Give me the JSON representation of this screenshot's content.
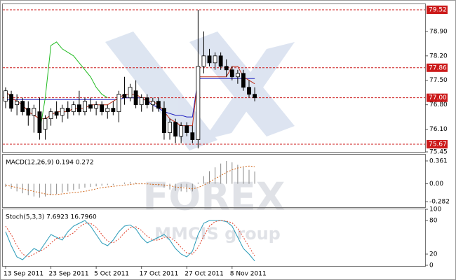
{
  "watermark": {
    "brand": "FOREX",
    "sub": "MMCIS group"
  },
  "chart_data": [
    {
      "type": "candlestick",
      "categories": [
        "13 Sep 2011",
        null,
        null,
        null,
        null,
        null,
        null,
        null,
        "23 Sep 2011",
        null,
        null,
        null,
        null,
        null,
        null,
        null,
        "5 Oct 2011",
        null,
        null,
        null,
        null,
        null,
        null,
        null,
        "17 Oct 2011",
        null,
        null,
        null,
        null,
        null,
        null,
        null,
        "27 Oct 2011",
        null,
        null,
        null,
        null,
        null,
        null,
        null,
        "8 Nov 2011",
        null,
        null,
        null,
        null
      ],
      "open": [
        76.9,
        77.1,
        76.8,
        76.9,
        76.7,
        76.5,
        76.6,
        76.1,
        76.4,
        76.6,
        76.5,
        76.7,
        76.6,
        76.8,
        76.6,
        76.8,
        76.7,
        76.8,
        76.6,
        76.7,
        76.6,
        77.1,
        77.0,
        77.2,
        76.8,
        77.0,
        76.8,
        76.9,
        76.7,
        76.0,
        76.3,
        75.9,
        76.2,
        76.0,
        75.8,
        77.9,
        78.2,
        78.0,
        78.2,
        77.9,
        77.8,
        77.6,
        77.7,
        77.3,
        77.1
      ],
      "high": [
        77.3,
        77.2,
        77.1,
        77.0,
        76.9,
        76.8,
        77.0,
        76.5,
        76.7,
        76.9,
        76.8,
        76.9,
        76.9,
        77.2,
        77.0,
        77.0,
        76.9,
        76.9,
        76.8,
        76.9,
        77.2,
        77.6,
        77.4,
        77.5,
        77.1,
        77.1,
        77.0,
        77.0,
        76.9,
        76.4,
        76.4,
        76.3,
        76.3,
        76.2,
        79.52,
        78.9,
        78.4,
        78.3,
        78.3,
        78.1,
        77.9,
        77.8,
        77.8,
        77.5,
        77.3
      ],
      "low": [
        76.7,
        76.6,
        76.5,
        76.5,
        76.2,
        76.0,
        75.8,
        75.8,
        76.2,
        76.4,
        76.3,
        76.4,
        76.5,
        76.5,
        76.5,
        76.6,
        76.5,
        76.5,
        76.4,
        76.5,
        76.3,
        76.8,
        76.9,
        76.7,
        76.6,
        76.7,
        76.6,
        76.6,
        75.8,
        75.8,
        75.7,
        75.7,
        75.9,
        75.7,
        75.55,
        77.7,
        77.9,
        77.8,
        77.8,
        77.6,
        77.5,
        77.4,
        77.2,
        77.0,
        76.9
      ],
      "close": [
        77.2,
        76.7,
        76.9,
        76.6,
        76.5,
        76.7,
        76.0,
        76.4,
        76.6,
        76.5,
        76.7,
        76.6,
        76.8,
        76.6,
        76.9,
        76.7,
        76.8,
        76.6,
        76.7,
        76.6,
        77.1,
        77.0,
        77.3,
        76.8,
        77.0,
        76.8,
        76.9,
        76.7,
        76.0,
        76.3,
        75.9,
        76.2,
        76.0,
        75.8,
        77.9,
        78.2,
        78.0,
        78.2,
        77.9,
        77.8,
        77.6,
        77.7,
        77.3,
        77.1,
        77.0
      ],
      "series": [
        {
          "color": "#2020c0",
          "values": [
            76.95,
            76.95,
            76.95,
            76.95,
            76.95,
            76.95,
            76.95,
            76.95,
            76.95,
            76.95,
            76.95,
            76.95,
            76.95,
            76.95,
            76.95,
            76.95,
            76.95,
            76.95,
            76.95,
            76.95,
            76.95,
            77.0,
            77.0,
            77.0,
            77.0,
            76.9,
            76.8,
            76.7,
            76.6,
            76.55,
            76.5,
            76.5,
            76.45,
            76.45,
            77.55,
            77.55,
            77.55,
            77.55,
            77.55,
            77.55,
            77.55,
            77.55,
            77.55,
            77.55,
            77.55
          ]
        },
        {
          "color": "#c0301a",
          "values": [
            77.2,
            77.0,
            76.9,
            76.8,
            76.6,
            76.5,
            76.4,
            76.4,
            76.5,
            76.6,
            76.6,
            76.6,
            76.7,
            76.7,
            76.7,
            76.8,
            76.8,
            76.8,
            76.8,
            76.9,
            77.0,
            77.1,
            77.1,
            77.1,
            77.0,
            76.9,
            76.9,
            76.8,
            76.6,
            76.4,
            76.3,
            76.2,
            76.2,
            76.2,
            77.6,
            77.6,
            77.6,
            77.6,
            77.6,
            77.6,
            77.9,
            77.9,
            77.6,
            77.5,
            77.4
          ]
        },
        {
          "color": "#22bb22",
          "values": [
            null,
            null,
            null,
            null,
            null,
            null,
            76.0,
            77.0,
            78.5,
            78.6,
            78.4,
            78.3,
            78.2,
            78.0,
            77.8,
            77.6,
            77.3,
            77.1,
            77.0,
            null,
            null,
            null,
            null,
            null,
            null,
            null,
            null,
            null,
            null,
            null,
            null,
            null,
            null,
            null,
            null,
            null,
            null,
            null,
            null,
            null,
            null,
            null,
            null,
            null,
            null
          ]
        }
      ],
      "ylim": [
        75.45,
        79.68
      ],
      "yticks": [
        {
          "value": 78.9,
          "label": "78.90"
        },
        {
          "value": 78.2,
          "label": "78.20"
        },
        {
          "value": 77.5,
          "label": "77.50"
        },
        {
          "value": 76.8,
          "label": "76.80"
        },
        {
          "value": 76.1,
          "label": "76.10"
        },
        75.45
      ],
      "levels": [
        79.52,
        77.86,
        {
          "value": 77,
          "label": "77.00"
        },
        75.67
      ],
      "level_color": "#cc1a1a"
    },
    {
      "type": "bar",
      "title": "MACD(12,26,9) 0.194 0.272",
      "color": "#888888",
      "values": [
        -0.05,
        -0.08,
        -0.12,
        -0.15,
        -0.18,
        -0.2,
        -0.22,
        -0.2,
        -0.18,
        -0.16,
        -0.14,
        -0.12,
        -0.1,
        -0.08,
        -0.06,
        -0.05,
        -0.04,
        -0.03,
        -0.02,
        -0.02,
        0,
        0.02,
        0.03,
        0.02,
        0.01,
        -0.01,
        -0.02,
        -0.03,
        -0.06,
        -0.09,
        -0.11,
        -0.12,
        -0.13,
        -0.12,
        0.02,
        0.12,
        0.2,
        0.26,
        0.32,
        0.36,
        0.34,
        0.3,
        0.26,
        0.22,
        0.194
      ],
      "series": [
        {
          "color": "#d2691e",
          "values": [
            -0.02,
            -0.04,
            -0.06,
            -0.08,
            -0.1,
            -0.12,
            -0.14,
            -0.16,
            -0.17,
            -0.17,
            -0.16,
            -0.15,
            -0.14,
            -0.13,
            -0.12,
            -0.1,
            -0.08,
            -0.06,
            -0.05,
            -0.04,
            -0.03,
            -0.02,
            -0.01,
            0,
            0,
            0,
            -0.01,
            -0.01,
            -0.02,
            -0.03,
            -0.05,
            -0.06,
            -0.07,
            -0.08,
            -0.06,
            -0.02,
            0.03,
            0.08,
            0.13,
            0.18,
            0.22,
            0.25,
            0.27,
            0.28,
            0.272
          ]
        }
      ],
      "ylim": [
        -0.37,
        0.46
      ],
      "yticks": [
        0.361,
        {
          "value": 0,
          "label": "0.00"
        },
        -0.282
      ]
    },
    {
      "type": "line",
      "title": "Stoch(5,3,3) 7.6923 16.7960",
      "series": [
        {
          "color": "#2a9bb8",
          "values": [
            60,
            35,
            15,
            10,
            20,
            30,
            25,
            40,
            55,
            50,
            45,
            60,
            70,
            75,
            80,
            70,
            55,
            40,
            35,
            45,
            60,
            70,
            72,
            65,
            50,
            40,
            45,
            50,
            55,
            45,
            30,
            20,
            15,
            25,
            55,
            75,
            80,
            80,
            80,
            78,
            70,
            50,
            30,
            20,
            7.6923
          ]
        },
        {
          "color": "#e0402a",
          "dashed": true,
          "values": [
            70,
            55,
            35,
            20,
            15,
            20,
            25,
            30,
            40,
            48,
            50,
            52,
            58,
            68,
            75,
            75,
            68,
            55,
            43,
            40,
            47,
            58,
            67,
            69,
            62,
            52,
            45,
            45,
            50,
            50,
            43,
            32,
            22,
            20,
            32,
            52,
            70,
            78,
            80,
            79,
            76,
            66,
            50,
            33,
            16.796
          ]
        }
      ],
      "ylim": [
        0,
        100
      ],
      "yticks": [
        100,
        80,
        20,
        0
      ]
    }
  ]
}
